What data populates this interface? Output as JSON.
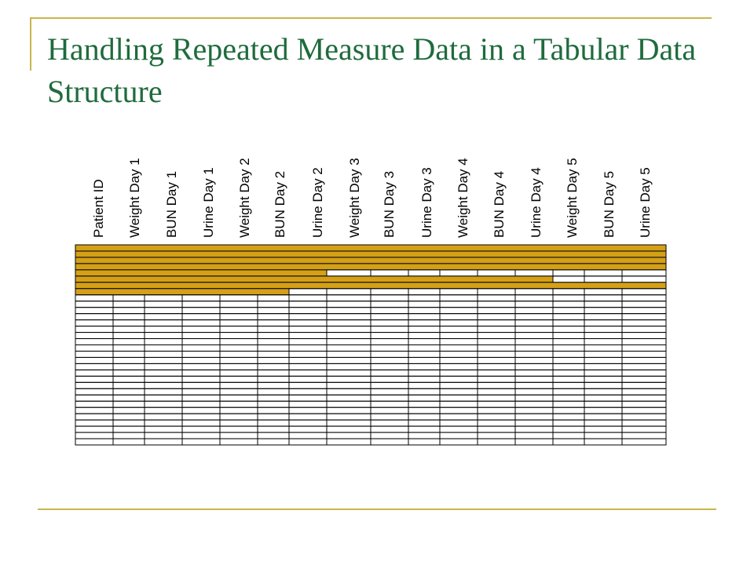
{
  "title": "Handling Repeated Measure Data in a Tabular Data Structure",
  "columns": [
    "Patient ID",
    "Weight Day 1",
    "BUN Day 1",
    "Urine Day 1",
    "Weight Day 2",
    "BUN Day 2",
    "Urine Day 2",
    "Weight Day 3",
    "BUN Day 3",
    "Urine Day 3",
    "Weight Day 4",
    "BUN Day 4",
    "Urine Day 4",
    "Weight Day 5",
    "BUN Day 5",
    "Urine Day 5"
  ],
  "table": {
    "row_count": 32,
    "filled_columns_per_row": [
      16,
      16,
      16,
      16,
      7,
      13,
      16,
      6
    ],
    "fill_color": "#d4a017",
    "line_color": "#000000"
  },
  "colors": {
    "title": "#1f6b3d",
    "accent_rule": "#c9b64a"
  }
}
